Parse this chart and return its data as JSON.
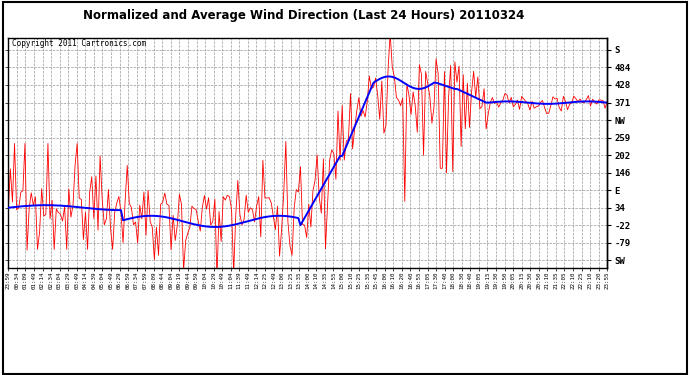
{
  "title": "Normalized and Average Wind Direction (Last 24 Hours) 20110324",
  "copyright": "Copyright 2011 Cartronics.com",
  "ytick_labels": [
    "S",
    "484",
    "428",
    "371",
    "NW",
    "259",
    "202",
    "146",
    "E",
    "34",
    "-22",
    "-79",
    "SW"
  ],
  "ytick_values": [
    540,
    484,
    428,
    371,
    315,
    259,
    202,
    146,
    90,
    34,
    -22,
    -79,
    -135
  ],
  "ylim": [
    -160,
    580
  ],
  "background_color": "#ffffff",
  "grid_color": "#999999",
  "red_color": "#ff0000",
  "blue_color": "#0000ff",
  "xtick_labels": [
    "23:59",
    "00:34",
    "01:09",
    "01:49",
    "02:14",
    "02:34",
    "03:04",
    "03:29",
    "03:49",
    "04:14",
    "04:39",
    "05:04",
    "05:49",
    "06:29",
    "06:59",
    "07:34",
    "07:59",
    "08:09",
    "08:44",
    "09:04",
    "09:19",
    "09:44",
    "09:59",
    "10:04",
    "10:29",
    "10:49",
    "11:04",
    "11:39",
    "11:49",
    "12:14",
    "12:25",
    "12:49",
    "13:00",
    "13:25",
    "13:35",
    "14:00",
    "14:10",
    "14:35",
    "14:55",
    "15:00",
    "15:10",
    "15:25",
    "15:35",
    "15:45",
    "16:00",
    "16:10",
    "16:20",
    "16:40",
    "16:55",
    "17:05",
    "17:30",
    "17:40",
    "18:00",
    "18:30",
    "18:40",
    "19:05",
    "19:15",
    "19:30",
    "19:50",
    "20:05",
    "20:15",
    "20:30",
    "20:50",
    "21:10",
    "21:35",
    "22:05",
    "22:10",
    "22:25",
    "23:10",
    "23:20",
    "23:55"
  ]
}
